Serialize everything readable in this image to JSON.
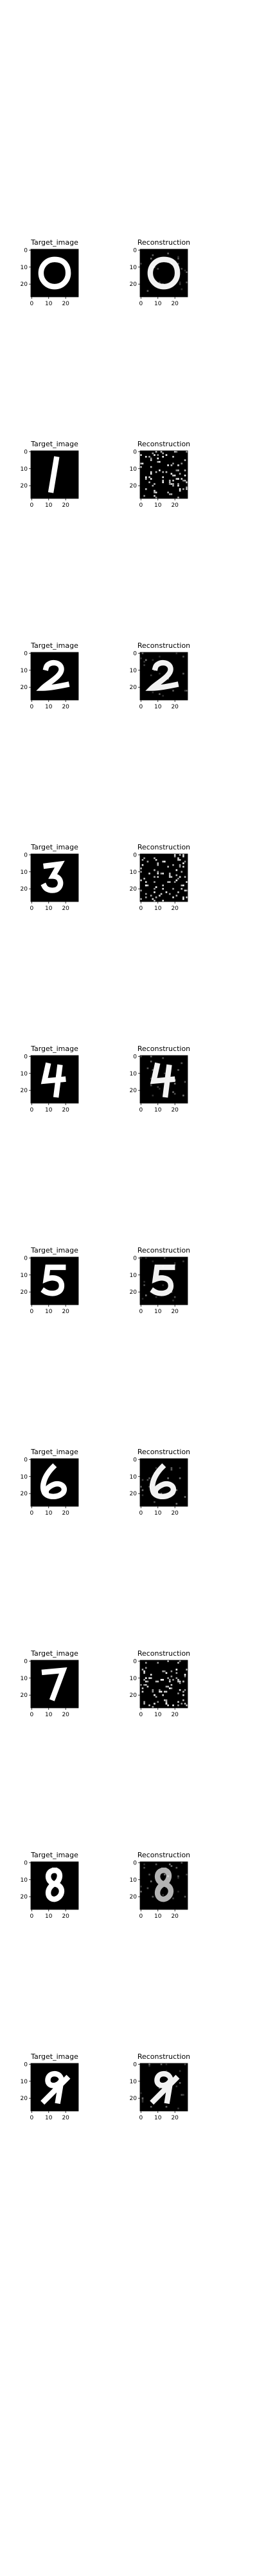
{
  "figure": {
    "panel_titles": [
      "Target_image",
      "Reconstruction"
    ],
    "tick_labels": [
      "0",
      "10",
      "20"
    ],
    "y_tick_labels": [
      "0",
      "10",
      "20"
    ],
    "rows": [
      {
        "digit": "0",
        "reconstruction": "clear"
      },
      {
        "digit": "1",
        "reconstruction": "noise"
      },
      {
        "digit": "2",
        "reconstruction": "clear"
      },
      {
        "digit": "3",
        "reconstruction": "noise"
      },
      {
        "digit": "4",
        "reconstruction": "clear"
      },
      {
        "digit": "5",
        "reconstruction": "clear"
      },
      {
        "digit": "6",
        "reconstruction": "clear"
      },
      {
        "digit": "7",
        "reconstruction": "noise"
      },
      {
        "digit": "8",
        "reconstruction": "blurred"
      },
      {
        "digit": "9",
        "reconstruction": "clear"
      }
    ],
    "colors": {
      "background": "#000000",
      "stroke": "#ffffff"
    }
  }
}
